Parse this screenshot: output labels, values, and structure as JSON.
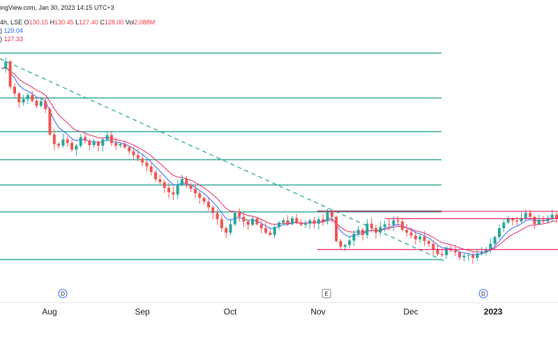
{
  "header": {
    "source": "ingView.com, Jan 30, 2023 14:15 UTC+3",
    "symbol_line_prefix": "4h, LSE",
    "ohlc": {
      "o_label": "O",
      "o": "130.15",
      "h_label": "H",
      "h": "130.45",
      "l_label": "L",
      "l": "127.40",
      "c_label": "C",
      "c": "128.00",
      "vol_label": "Vol",
      "vol": "2.088M"
    },
    "ma1_prefix": ")",
    "ma1_value": "129.04",
    "ma2_prefix": ")",
    "ma2_value": "127.33"
  },
  "colors": {
    "up": "#26a69a",
    "down": "#ef5350",
    "ma_fast": "#2962ff",
    "ma_slow": "#e91e63",
    "horizontal_level": "#089981",
    "range_line": "#e91e63",
    "trendline": "#26a69a",
    "badge": "#2962ff"
  },
  "chart_data": {
    "type": "candlestick",
    "x_ticks": [
      {
        "label": "Aug",
        "bold": false
      },
      {
        "label": "Sep",
        "bold": false
      },
      {
        "label": "Oct",
        "bold": false
      },
      {
        "label": "Nov",
        "bold": false
      },
      {
        "label": "Dec",
        "bold": false
      },
      {
        "label": "2023",
        "bold": true
      }
    ],
    "events": [
      {
        "label": "D",
        "type": "dividend"
      },
      {
        "label": "E",
        "type": "earnings"
      },
      {
        "label": "D",
        "type": "dividend"
      }
    ],
    "horizontal_levels": [
      160,
      152,
      146,
      141,
      136.5,
      131.7,
      123.2
    ],
    "range_lines": [
      {
        "price": 131.8,
        "from": "Nov",
        "to": "end"
      },
      {
        "price": 130.5,
        "from": "late Nov",
        "to": "end"
      },
      {
        "price": 125,
        "from": "Nov",
        "to": "end"
      }
    ],
    "trendline": {
      "from_price": 159,
      "from": "mid Jul",
      "to_price": 123,
      "to": "mid Dec"
    },
    "y_range": [
      120,
      162
    ],
    "series": [
      {
        "name": "ma_fast_value",
        "last": 129.04
      },
      {
        "name": "ma_slow_value",
        "last": 127.33
      }
    ],
    "price_path": [
      157.2,
      158.5,
      154.0,
      152.8,
      151.2,
      151.8,
      152.5,
      151.5,
      150.6,
      151.4,
      150.0,
      145.5,
      143.8,
      143.5,
      144.6,
      144.0,
      142.8,
      143.5,
      145.0,
      144.4,
      143.6,
      144.2,
      143.5,
      144.6,
      145.4,
      144.0,
      143.5,
      143.8,
      143.2,
      142.5,
      141.8,
      141.2,
      140.5,
      139.8,
      138.8,
      137.5,
      137.0,
      136.0,
      135.2,
      134.8,
      136.5,
      137.6,
      136.5,
      135.8,
      135.0,
      134.2,
      133.5,
      132.5,
      131.5,
      130.4,
      128.8,
      128.0,
      129.5,
      131.5,
      130.8,
      130.0,
      129.4,
      130.5,
      129.5,
      128.8,
      128.0,
      127.6,
      129.0,
      129.8,
      130.2,
      129.5,
      130.6,
      129.8,
      129.4,
      129.6,
      130.2,
      129.6,
      130.4,
      130.0,
      131.8,
      130.8,
      126.5,
      125.5,
      125.8,
      126.6,
      127.8,
      128.5,
      127.6,
      129.6,
      128.8,
      128.0,
      129.0,
      129.5,
      129.4,
      130.2,
      130.0,
      128.5,
      128.0,
      127.5,
      126.8,
      127.3,
      126.5,
      126.0,
      125.0,
      124.2,
      124.0,
      125.2,
      124.8,
      124.5,
      123.6,
      123.9,
      124.0,
      123.5,
      124.3,
      124.5,
      125.0,
      126.0,
      127.2,
      128.8,
      129.8,
      130.5,
      130.2,
      130.0,
      130.6,
      131.5,
      130.8,
      129.5,
      130.3,
      130.0,
      130.6,
      131.2,
      130.5
    ]
  }
}
